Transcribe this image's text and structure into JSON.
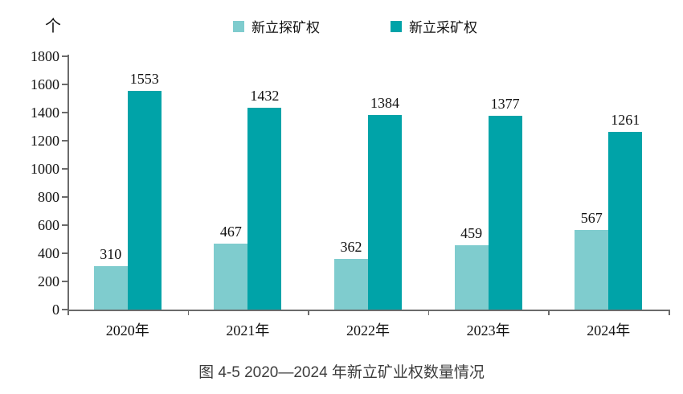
{
  "chart_data": {
    "type": "bar",
    "unit_label": "个",
    "categories": [
      "2020年",
      "2021年",
      "2022年",
      "2023年",
      "2024年"
    ],
    "series": [
      {
        "name": "新立探矿权",
        "color": "#7FCCCE",
        "values": [
          310,
          467,
          362,
          459,
          567
        ]
      },
      {
        "name": "新立采矿权",
        "color": "#00A3A8",
        "values": [
          1553,
          1432,
          1384,
          1377,
          1261
        ]
      }
    ],
    "ylim": [
      0,
      1800
    ],
    "ytick_step": 200,
    "grid": false,
    "legend_position": "top",
    "axis_color": "#6b6b6b"
  },
  "caption": "图 4-5  2020—2024 年新立矿业权数量情况"
}
